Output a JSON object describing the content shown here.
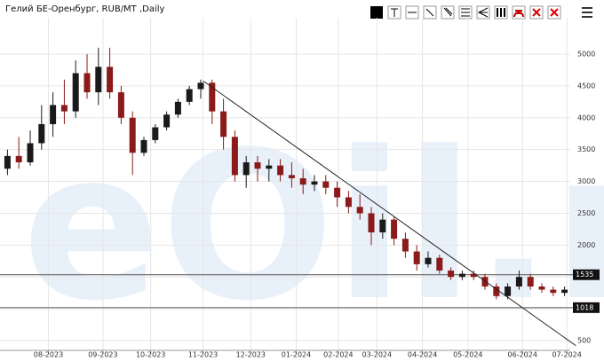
{
  "chart_data": {
    "type": "candlestick",
    "title": "Гелий БЕ-Оренбург, RUB/MT ,Daily",
    "watermark": "eOil.ru",
    "categories": [
      null,
      null,
      null,
      null,
      null,
      null,
      null,
      null,
      null,
      null,
      null,
      null,
      null,
      null,
      null,
      null,
      null,
      null,
      null,
      null,
      null,
      null,
      null,
      null,
      null,
      null,
      null,
      null,
      null,
      null,
      null,
      null,
      null,
      null,
      null,
      null,
      null,
      null,
      null,
      null,
      null,
      null,
      null,
      null,
      null,
      null,
      null,
      null,
      null,
      null
    ],
    "open": [
      3200,
      3400,
      3300,
      3600,
      3900,
      4200,
      4100,
      4700,
      4400,
      4800,
      4400,
      4000,
      3450,
      3650,
      3850,
      4050,
      4250,
      4450,
      4550,
      4100,
      3700,
      3100,
      3300,
      3200,
      3250,
      3100,
      3050,
      2950,
      3000,
      2900,
      2750,
      2600,
      2500,
      2200,
      2400,
      2100,
      1900,
      1700,
      1800,
      1600,
      1500,
      1550,
      1500,
      1350,
      1200,
      1350,
      1500,
      1350,
      1300,
      1250
    ],
    "high": [
      3500,
      3700,
      3800,
      4200,
      4400,
      4600,
      4900,
      5000,
      5100,
      5100,
      4500,
      4100,
      3700,
      3900,
      4100,
      4300,
      4500,
      4600,
      4600,
      4300,
      3800,
      3400,
      3400,
      3350,
      3350,
      3300,
      3200,
      3100,
      3100,
      3000,
      2850,
      2800,
      2600,
      2500,
      2450,
      2200,
      2000,
      1900,
      1850,
      1650,
      1600,
      1600,
      1550,
      1400,
      1400,
      1600,
      1550,
      1400,
      1350,
      1350
    ],
    "low": [
      3100,
      3200,
      3250,
      3500,
      3700,
      3900,
      4000,
      4300,
      4200,
      4300,
      3900,
      3100,
      3400,
      3600,
      3800,
      4000,
      4200,
      4300,
      3900,
      3500,
      3000,
      2900,
      3000,
      3000,
      3000,
      2900,
      2800,
      2850,
      2800,
      2600,
      2500,
      2400,
      2000,
      2100,
      2000,
      1800,
      1600,
      1650,
      1550,
      1450,
      1450,
      1450,
      1300,
      1150,
      1150,
      1300,
      1300,
      1250,
      1200,
      1200
    ],
    "close": [
      3400,
      3300,
      3600,
      3900,
      4200,
      4100,
      4700,
      4400,
      4800,
      4400,
      4000,
      3450,
      3650,
      3850,
      4050,
      4250,
      4450,
      4550,
      4100,
      3700,
      3100,
      3300,
      3200,
      3250,
      3100,
      3050,
      2950,
      3000,
      2900,
      2750,
      2600,
      2500,
      2200,
      2400,
      2100,
      1900,
      1700,
      1800,
      1600,
      1500,
      1550,
      1500,
      1350,
      1200,
      1350,
      1500,
      1350,
      1300,
      1250,
      1300
    ],
    "up_color": "#1a1a1a",
    "down_color": "#8b1a1a",
    "ylim": [
      347,
      5571
    ],
    "yticks": [
      500,
      1000,
      1500,
      2000,
      2500,
      3000,
      3500,
      4000,
      4500,
      5000
    ],
    "xticks": [
      {
        "value": 3.6,
        "label": "08-2023"
      },
      {
        "value": 8.4,
        "label": "09-2023"
      },
      {
        "value": 12.6,
        "label": "10-2023"
      },
      {
        "value": 17.2,
        "label": "11-2023"
      },
      {
        "value": 21.4,
        "label": "12-2023"
      },
      {
        "value": 25.4,
        "label": "01-2024"
      },
      {
        "value": 29.1,
        "label": "02-2024"
      },
      {
        "value": 32.5,
        "label": "03-2024"
      },
      {
        "value": 36.5,
        "label": "04-2024"
      },
      {
        "value": 40.5,
        "label": "05-2024"
      },
      {
        "value": 45.3,
        "label": "06-2024"
      },
      {
        "value": 49.2,
        "label": "07-2024"
      }
    ],
    "hlines": [
      1535,
      1018
    ],
    "trendline": [
      {
        "x": 17.2,
        "y": 4580
      },
      {
        "x": 50,
        "y": 420
      }
    ],
    "grid": true
  }
}
